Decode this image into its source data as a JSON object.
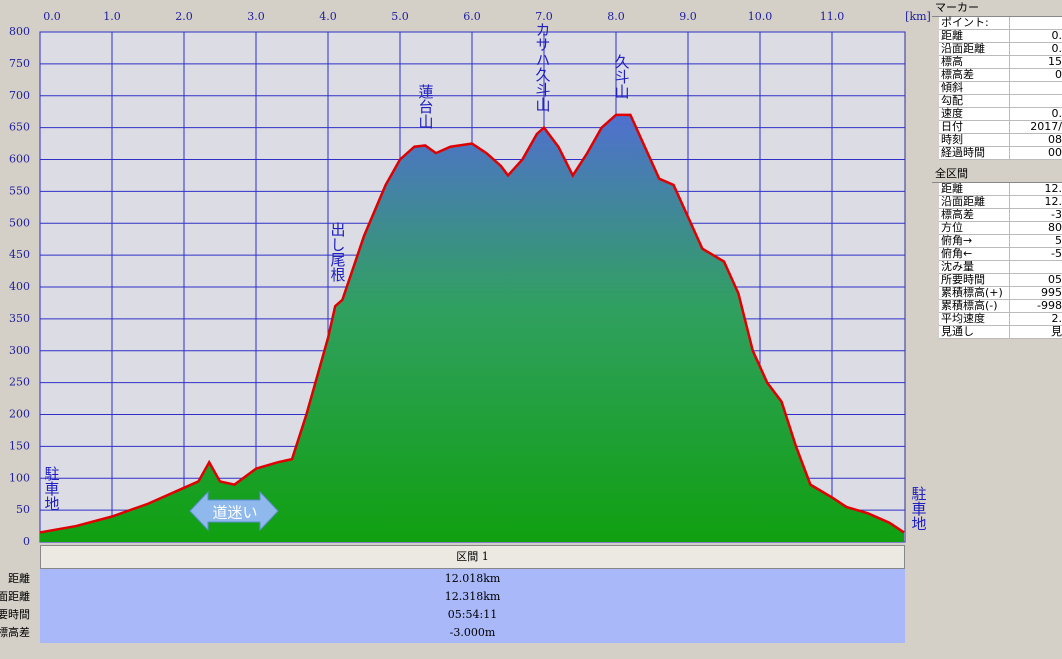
{
  "chart_data": {
    "type": "area",
    "x": [
      0,
      0.5,
      1.0,
      1.5,
      2.0,
      2.2,
      2.35,
      2.5,
      2.7,
      3.0,
      3.3,
      3.5,
      3.7,
      3.9,
      4.0,
      4.1,
      4.2,
      4.5,
      4.8,
      5.0,
      5.2,
      5.35,
      5.5,
      5.7,
      6.0,
      6.2,
      6.4,
      6.5,
      6.7,
      6.9,
      7.0,
      7.2,
      7.4,
      7.6,
      7.8,
      8.0,
      8.2,
      8.4,
      8.6,
      8.8,
      9.0,
      9.2,
      9.5,
      9.7,
      9.9,
      10.1,
      10.3,
      10.5,
      10.7,
      11.0,
      11.2,
      11.5,
      11.8,
      12.0
    ],
    "values": [
      15,
      25,
      40,
      60,
      85,
      95,
      125,
      95,
      90,
      115,
      125,
      130,
      200,
      280,
      320,
      370,
      380,
      480,
      560,
      600,
      620,
      622,
      610,
      620,
      625,
      610,
      590,
      575,
      600,
      640,
      650,
      620,
      575,
      610,
      650,
      670,
      670,
      620,
      570,
      560,
      510,
      460,
      440,
      390,
      300,
      250,
      220,
      150,
      90,
      70,
      55,
      45,
      30,
      15
    ],
    "color": "#e00000",
    "xlim": [
      0,
      12
    ],
    "xticks": [
      {
        "value": 0,
        "label": "0.0"
      },
      {
        "value": 1,
        "label": "1.0"
      },
      {
        "value": 2,
        "label": "2.0"
      },
      {
        "value": 3,
        "label": "3.0"
      },
      {
        "value": 4,
        "label": "4.0"
      },
      {
        "value": 5,
        "label": "5.0"
      },
      {
        "value": 6,
        "label": "6.0"
      },
      {
        "value": 7,
        "label": "7.0"
      },
      {
        "value": 8,
        "label": "8.0"
      },
      {
        "value": 9,
        "label": "9.0"
      },
      {
        "value": 10,
        "label": "10.0"
      },
      {
        "value": 11,
        "label": "11.0"
      }
    ],
    "x_unit": "[km]",
    "ylim": [
      0,
      800
    ],
    "yticks": [
      0,
      50,
      100,
      150,
      200,
      250,
      300,
      350,
      400,
      450,
      500,
      550,
      600,
      650,
      700,
      750,
      800
    ],
    "grid": true,
    "annotations": [
      "駐車地",
      "道迷い",
      "出し尾根",
      "蓮台山",
      "カサハ久斗山",
      "久斗山",
      "駐車地"
    ]
  },
  "section_table": {
    "header": "区間 1",
    "rows": [
      [
        "距離",
        "12.018km"
      ],
      [
        "沿面距離",
        "12.318km"
      ],
      [
        "所要時間",
        "05:54:11"
      ],
      [
        "標高差",
        "-3.000m"
      ]
    ]
  },
  "side_panel": {
    "marker_title": "マーカー",
    "marker_rows": [
      [
        "ポイント:",
        ""
      ],
      [
        "距離",
        "0."
      ],
      [
        "沿面距離",
        "0."
      ],
      [
        "標高",
        "15"
      ],
      [
        "標高差",
        "0"
      ],
      [
        "傾斜",
        ""
      ],
      [
        "勾配",
        ""
      ],
      [
        "速度",
        "0."
      ],
      [
        "日付",
        "2017/"
      ],
      [
        "時刻",
        "08"
      ],
      [
        "経過時間",
        "00"
      ]
    ],
    "total_title": "全区間",
    "total_rows": [
      [
        "距離",
        "12."
      ],
      [
        "沿面距離",
        "12."
      ],
      [
        "標高差",
        "-3"
      ],
      [
        "方位",
        "80"
      ],
      [
        "俯角→",
        "5"
      ],
      [
        "俯角←",
        "-5"
      ],
      [
        "沈み量",
        ""
      ],
      [
        "所要時間",
        "05"
      ],
      [
        "累積標高(+)",
        "995"
      ],
      [
        "累積標高(-)",
        "-998"
      ],
      [
        "平均速度",
        "2."
      ],
      [
        "見通し",
        "見"
      ]
    ]
  }
}
